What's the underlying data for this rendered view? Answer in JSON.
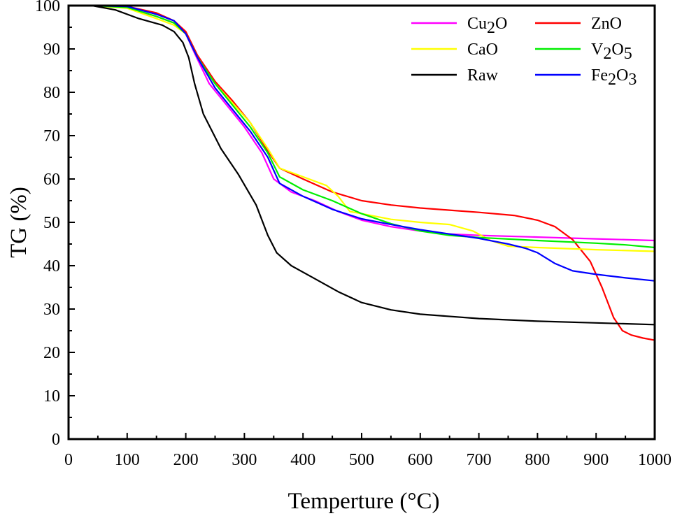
{
  "chart_data": {
    "type": "line",
    "title": "",
    "xlabel": "Temperture (°C)",
    "ylabel": "TG (%)",
    "xlim": [
      0,
      1000
    ],
    "ylim": [
      0,
      100
    ],
    "xticks": [
      "0",
      "100",
      "200",
      "300",
      "400",
      "500",
      "600",
      "700",
      "800",
      "900",
      "1000"
    ],
    "yticks": [
      "0",
      "10",
      "20",
      "30",
      "40",
      "50",
      "60",
      "70",
      "80",
      "90",
      "100"
    ],
    "grid": false,
    "legend_position": "top-right",
    "series": [
      {
        "name": "Cu2O",
        "label_base": "Cu",
        "label_sub": "2",
        "label_rest": "O",
        "color": "#ff00ff",
        "points": [
          [
            40,
            100
          ],
          [
            100,
            99.5
          ],
          [
            150,
            97.5
          ],
          [
            180,
            96
          ],
          [
            200,
            93.5
          ],
          [
            215,
            89
          ],
          [
            240,
            82
          ],
          [
            270,
            77
          ],
          [
            300,
            72
          ],
          [
            330,
            66
          ],
          [
            350,
            60
          ],
          [
            380,
            57
          ],
          [
            420,
            55
          ],
          [
            460,
            52.5
          ],
          [
            500,
            50.5
          ],
          [
            550,
            49
          ],
          [
            600,
            48
          ],
          [
            650,
            47.3
          ],
          [
            700,
            47
          ],
          [
            800,
            46.6
          ],
          [
            900,
            46.2
          ],
          [
            1000,
            45.8
          ]
        ]
      },
      {
        "name": "ZnO",
        "label_base": "ZnO",
        "label_sub": "",
        "label_rest": "",
        "color": "#ff0000",
        "points": [
          [
            40,
            100
          ],
          [
            100,
            99.8
          ],
          [
            150,
            98.3
          ],
          [
            180,
            96.5
          ],
          [
            200,
            94
          ],
          [
            220,
            88.5
          ],
          [
            250,
            82.5
          ],
          [
            280,
            78
          ],
          [
            310,
            73
          ],
          [
            340,
            66.5
          ],
          [
            360,
            62.5
          ],
          [
            400,
            60
          ],
          [
            450,
            57
          ],
          [
            500,
            55
          ],
          [
            550,
            54
          ],
          [
            600,
            53.3
          ],
          [
            650,
            52.8
          ],
          [
            700,
            52.3
          ],
          [
            760,
            51.6
          ],
          [
            800,
            50.5
          ],
          [
            830,
            49
          ],
          [
            860,
            46
          ],
          [
            890,
            41
          ],
          [
            910,
            35
          ],
          [
            930,
            28
          ],
          [
            945,
            25
          ],
          [
            960,
            24
          ],
          [
            980,
            23.3
          ],
          [
            1000,
            22.8
          ]
        ]
      },
      {
        "name": "CaO",
        "label_base": "CaO",
        "label_sub": "",
        "label_rest": "",
        "color": "#ffff00",
        "points": [
          [
            40,
            100
          ],
          [
            100,
            99.4
          ],
          [
            150,
            97
          ],
          [
            180,
            95.5
          ],
          [
            200,
            93.5
          ],
          [
            220,
            88
          ],
          [
            250,
            82
          ],
          [
            280,
            77.5
          ],
          [
            310,
            73
          ],
          [
            340,
            67
          ],
          [
            360,
            62.5
          ],
          [
            400,
            60.5
          ],
          [
            440,
            58.5
          ],
          [
            460,
            56
          ],
          [
            480,
            52.5
          ],
          [
            500,
            52
          ],
          [
            550,
            50.7
          ],
          [
            600,
            50
          ],
          [
            650,
            49.5
          ],
          [
            690,
            48
          ],
          [
            720,
            45.8
          ],
          [
            750,
            44.5
          ],
          [
            800,
            44.2
          ],
          [
            900,
            43.7
          ],
          [
            1000,
            43.3
          ]
        ]
      },
      {
        "name": "V2O5",
        "label_base": "V",
        "label_sub": "2",
        "label_rest": "O",
        "label_sub2": "5",
        "color": "#00ee00",
        "points": [
          [
            40,
            100
          ],
          [
            100,
            99.6
          ],
          [
            150,
            97.5
          ],
          [
            180,
            96
          ],
          [
            200,
            93.5
          ],
          [
            220,
            88
          ],
          [
            250,
            82
          ],
          [
            280,
            77
          ],
          [
            310,
            72
          ],
          [
            340,
            66
          ],
          [
            360,
            60.5
          ],
          [
            400,
            57.5
          ],
          [
            450,
            55
          ],
          [
            500,
            52
          ],
          [
            550,
            49.7
          ],
          [
            600,
            48
          ],
          [
            650,
            47
          ],
          [
            700,
            46.5
          ],
          [
            800,
            45.8
          ],
          [
            900,
            45.2
          ],
          [
            950,
            44.8
          ],
          [
            1000,
            44.2
          ]
        ]
      },
      {
        "name": "Raw",
        "label_base": "Raw",
        "label_sub": "",
        "label_rest": "",
        "color": "#000000",
        "points": [
          [
            40,
            100
          ],
          [
            80,
            99
          ],
          [
            120,
            97
          ],
          [
            160,
            95.5
          ],
          [
            180,
            94
          ],
          [
            195,
            91.5
          ],
          [
            205,
            88
          ],
          [
            215,
            82
          ],
          [
            230,
            75
          ],
          [
            260,
            67
          ],
          [
            290,
            61
          ],
          [
            320,
            54
          ],
          [
            340,
            47
          ],
          [
            355,
            43
          ],
          [
            380,
            40
          ],
          [
            420,
            37
          ],
          [
            460,
            34
          ],
          [
            500,
            31.5
          ],
          [
            550,
            29.8
          ],
          [
            600,
            28.8
          ],
          [
            700,
            27.8
          ],
          [
            800,
            27.2
          ],
          [
            900,
            26.8
          ],
          [
            1000,
            26.4
          ]
        ]
      },
      {
        "name": "Fe2O3",
        "label_base": "Fe",
        "label_sub": "2",
        "label_rest": "O",
        "label_sub2": "3",
        "color": "#0000ff",
        "points": [
          [
            40,
            100
          ],
          [
            100,
            99.8
          ],
          [
            150,
            98
          ],
          [
            180,
            96.5
          ],
          [
            200,
            93.5
          ],
          [
            220,
            88
          ],
          [
            250,
            81
          ],
          [
            280,
            76
          ],
          [
            310,
            71
          ],
          [
            340,
            65
          ],
          [
            360,
            59
          ],
          [
            400,
            56
          ],
          [
            450,
            53
          ],
          [
            500,
            50.8
          ],
          [
            550,
            49.5
          ],
          [
            600,
            48.3
          ],
          [
            650,
            47.3
          ],
          [
            700,
            46.3
          ],
          [
            750,
            45
          ],
          [
            780,
            44
          ],
          [
            800,
            43
          ],
          [
            830,
            40.5
          ],
          [
            860,
            38.8
          ],
          [
            900,
            38
          ],
          [
            950,
            37.2
          ],
          [
            1000,
            36.5
          ]
        ]
      }
    ]
  }
}
